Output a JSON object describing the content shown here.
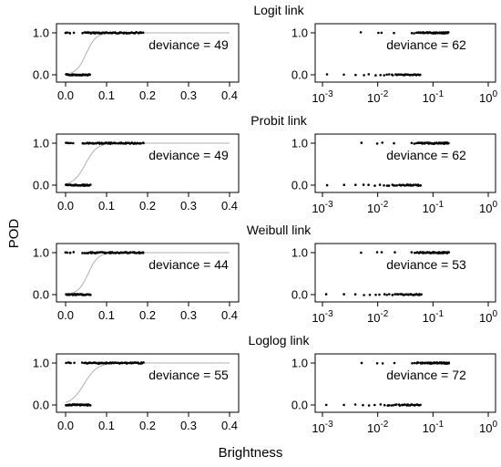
{
  "chart_data": {
    "type": "scatter",
    "xlabel": "Brightness",
    "ylabel": "POD",
    "grid": false,
    "rows": [
      {
        "title": "Logit link",
        "linear": {
          "xlim": [
            0,
            0.4
          ],
          "ylim": [
            0,
            1
          ],
          "deviance_text": "deviance = 49",
          "fit": {
            "mid": 0.05,
            "scale": 0.012
          }
        },
        "log": {
          "xlim": [
            0.001,
            1
          ],
          "ylim": [
            0,
            1
          ],
          "deviance_text": "deviance = 62"
        }
      },
      {
        "title": "Probit link",
        "linear": {
          "xlim": [
            0,
            0.4
          ],
          "ylim": [
            0,
            1
          ],
          "deviance_text": "deviance = 49",
          "fit": {
            "mid": 0.048,
            "scale": 0.014
          }
        },
        "log": {
          "xlim": [
            0.001,
            1
          ],
          "ylim": [
            0,
            1
          ],
          "deviance_text": "deviance = 62"
        }
      },
      {
        "title": "Weibull link",
        "linear": {
          "xlim": [
            0,
            0.4
          ],
          "ylim": [
            0,
            1
          ],
          "deviance_text": "deviance = 44",
          "fit": {
            "mid": 0.055,
            "scale": 0.012
          }
        },
        "log": {
          "xlim": [
            0.001,
            1
          ],
          "ylim": [
            0,
            1
          ],
          "deviance_text": "deviance = 53"
        }
      },
      {
        "title": "Loglog link",
        "linear": {
          "xlim": [
            0,
            0.4
          ],
          "ylim": [
            0,
            1
          ],
          "deviance_text": "deviance = 55",
          "fit": {
            "mid": 0.045,
            "scale": 0.016
          }
        },
        "log": {
          "xlim": [
            0.001,
            1
          ],
          "ylim": [
            0,
            1
          ],
          "deviance_text": "deviance = 72"
        }
      }
    ],
    "linear_x_ticks": [
      "0.0",
      "0.1",
      "0.2",
      "0.3",
      "0.4"
    ],
    "log_x_ticks": [
      {
        "base": "10",
        "exp": "-3"
      },
      {
        "base": "10",
        "exp": "-2"
      },
      {
        "base": "10",
        "exp": "-1"
      },
      {
        "base": "10",
        "exp": "0"
      }
    ],
    "y_ticks": [
      "0.0",
      "1.0"
    ],
    "observations": {
      "detected_x": [
        0.0,
        0.005,
        0.01,
        0.012,
        0.02,
        0.042,
        0.046,
        0.05,
        0.053,
        0.055,
        0.058,
        0.06,
        0.063,
        0.065,
        0.068,
        0.07,
        0.073,
        0.075,
        0.078,
        0.08,
        0.083,
        0.085,
        0.088,
        0.09,
        0.093,
        0.095,
        0.098,
        0.1,
        0.103,
        0.105,
        0.108,
        0.11,
        0.113,
        0.115,
        0.118,
        0.12,
        0.123,
        0.125,
        0.128,
        0.13,
        0.133,
        0.135,
        0.138,
        0.14,
        0.143,
        0.145,
        0.148,
        0.15,
        0.153,
        0.155,
        0.158,
        0.16,
        0.163,
        0.165,
        0.168,
        0.17,
        0.173,
        0.175,
        0.178,
        0.18,
        0.183,
        0.185,
        0.188,
        0.19
      ],
      "missed_x": [
        0.0012,
        0.0025,
        0.004,
        0.0055,
        0.007,
        0.009,
        0.011,
        0.013,
        0.015,
        0.016,
        0.018,
        0.019,
        0.021,
        0.022,
        0.024,
        0.025,
        0.027,
        0.028,
        0.03,
        0.031,
        0.033,
        0.034,
        0.036,
        0.037,
        0.039,
        0.04,
        0.042,
        0.043,
        0.045,
        0.046,
        0.048,
        0.05,
        0.052,
        0.054,
        0.056,
        0.058,
        0.06
      ]
    },
    "colors": {
      "points": "#000000",
      "curve": "#b0b0b0",
      "axes": "#000000",
      "frame": "#000000"
    }
  }
}
